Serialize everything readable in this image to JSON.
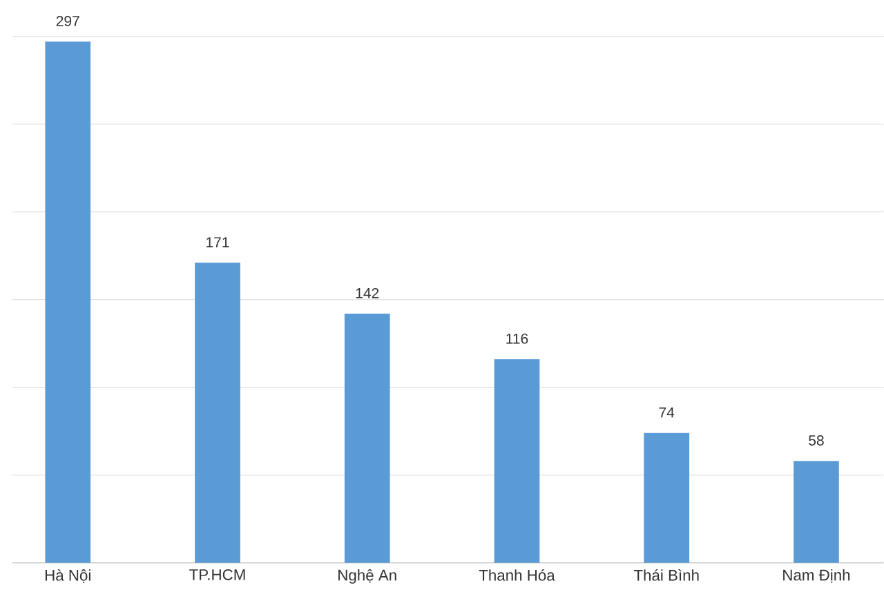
{
  "chart_data": {
    "type": "bar",
    "categories": [
      "Hà  Nội",
      "TP.HCM",
      "Nghệ An",
      "Thanh Hóa",
      "Thái Bình",
      "Nam Định"
    ],
    "values": [
      297,
      171,
      142,
      116,
      74,
      58
    ],
    "color": "#5b9bd5",
    "data_labels": true,
    "grid": "y",
    "tick_labels": "x"
  }
}
